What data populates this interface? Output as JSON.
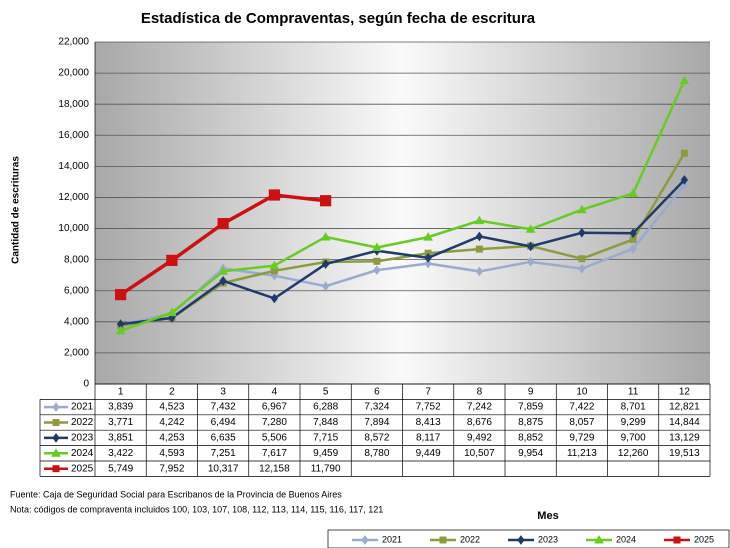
{
  "chart_data": {
    "type": "line",
    "title": "Estadística de Compraventas, según fecha de escritura",
    "ylabel": "Cantidad de escrituras",
    "xlabel": "Mes",
    "source": "Fuente: Caja de Seguridad Social para Escribanos de la Provincia de Buenos Aires",
    "note": "Nota: códigos de compraventa incluidos 100, 103, 107, 108, 112, 113, 114, 115, 116, 117, 121",
    "categories": [
      "1",
      "2",
      "3",
      "4",
      "5",
      "6",
      "7",
      "8",
      "9",
      "10",
      "11",
      "12"
    ],
    "ylim": [
      0,
      22000
    ],
    "yticks": [
      0,
      {
        "value": 2000,
        "label": "2,000"
      },
      {
        "value": 4000,
        "label": "4,000"
      },
      {
        "value": 6000,
        "label": "6,000"
      },
      {
        "value": 8000,
        "label": "8,000"
      },
      {
        "value": 10000,
        "label": "10,000"
      },
      {
        "value": 12000,
        "label": "12,000"
      },
      {
        "value": 14000,
        "label": "14,000"
      },
      {
        "value": 16000,
        "label": "16,000"
      },
      {
        "value": 18000,
        "label": "18,000"
      },
      {
        "value": 20000,
        "label": "20,000"
      },
      {
        "value": 22000,
        "label": "22,000"
      }
    ],
    "grid": true,
    "legend": "bottom",
    "series": [
      {
        "name": "2021",
        "color": "#9aabd0",
        "marker": "diamond",
        "values": [
          3839,
          4523,
          7432,
          6967,
          6288,
          7324,
          7752,
          7242,
          7859,
          7422,
          8701,
          12821
        ],
        "value_labels": [
          "3,839",
          "4,523",
          "7,432",
          "6,967",
          "6,288",
          "7,324",
          "7,752",
          "7,242",
          "7,859",
          "7,422",
          "8,701",
          "12,821"
        ]
      },
      {
        "name": "2022",
        "color": "#8c9b3e",
        "marker": "square",
        "values": [
          3771,
          4242,
          6494,
          7280,
          7848,
          7894,
          8413,
          8676,
          8875,
          8057,
          9299,
          14844
        ],
        "value_labels": [
          "3,771",
          "4,242",
          "6,494",
          "7,280",
          "7,848",
          "7,894",
          "8,413",
          "8,676",
          "8,875",
          "8,057",
          "9,299",
          "14,844"
        ]
      },
      {
        "name": "2023",
        "color": "#1f3a6b",
        "marker": "diamond",
        "values": [
          3851,
          4253,
          6635,
          5506,
          7715,
          8572,
          8117,
          9492,
          8852,
          9729,
          9700,
          13129
        ],
        "value_labels": [
          "3,851",
          "4,253",
          "6,635",
          "5,506",
          "7,715",
          "8,572",
          "8,117",
          "9,492",
          "8,852",
          "9,729",
          "9,700",
          "13,129"
        ]
      },
      {
        "name": "2024",
        "color": "#66cc22",
        "marker": "triangle",
        "values": [
          3422,
          4593,
          7251,
          7617,
          9459,
          8780,
          9449,
          10507,
          9954,
          11213,
          12260,
          19513
        ],
        "value_labels": [
          "3,422",
          "4,593",
          "7,251",
          "7,617",
          "9,459",
          "8,780",
          "9,449",
          "10,507",
          "9,954",
          "11,213",
          "12,260",
          "19,513"
        ]
      },
      {
        "name": "2025",
        "color": "#cc1111",
        "marker": "square",
        "values": [
          5749,
          7952,
          10317,
          12158,
          11790,
          null,
          null,
          null,
          null,
          null,
          null,
          null
        ],
        "value_labels": [
          "5,749",
          "7,952",
          "10,317",
          "12,158",
          "11,790",
          null,
          null,
          null,
          null,
          null,
          null,
          null
        ]
      }
    ]
  }
}
